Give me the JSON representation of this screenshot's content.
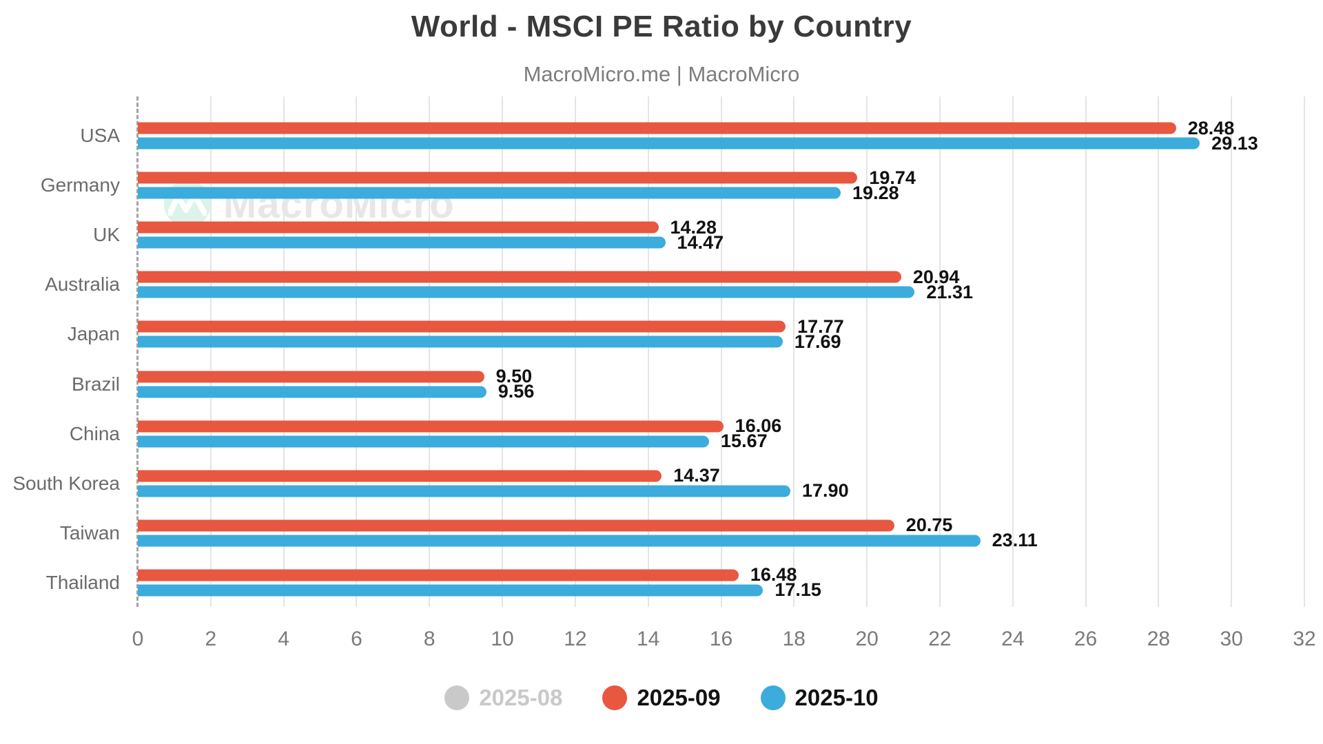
{
  "header": {
    "title": "World - MSCI PE Ratio by Country",
    "subtitle": "MacroMicro.me | MacroMicro"
  },
  "watermark": {
    "text": "MacroMicro",
    "circle_color": "#DCF3EA",
    "mark_color": "#FFFFFF"
  },
  "chart_data": {
    "type": "bar",
    "orientation": "horizontal",
    "title": "World - MSCI PE Ratio by Country",
    "subtitle": "MacroMicro.me | MacroMicro",
    "categories": [
      "USA",
      "Germany",
      "UK",
      "Australia",
      "Japan",
      "Brazil",
      "China",
      "South Korea",
      "Taiwan",
      "Thailand"
    ],
    "series": [
      {
        "name": "2025-08",
        "color": "#C9C9C9",
        "visible": false,
        "values": []
      },
      {
        "name": "2025-09",
        "color": "#E8573F",
        "visible": true,
        "values": [
          28.48,
          19.74,
          14.28,
          20.94,
          17.77,
          9.5,
          16.06,
          14.37,
          20.75,
          16.48
        ]
      },
      {
        "name": "2025-10",
        "color": "#3BACDB",
        "visible": true,
        "values": [
          29.13,
          19.28,
          14.47,
          21.31,
          17.69,
          9.56,
          15.67,
          17.9,
          23.11,
          17.15
        ]
      }
    ],
    "xlim": [
      0,
      32
    ],
    "xtick_step": 2,
    "grid": true,
    "value_label_decimals": 2,
    "legend_position": "bottom",
    "colors": {
      "gridline": "#E4E4E4",
      "axis_dashed": "#A3A3A3",
      "value_label": "#111111",
      "category_label": "#6B6B6B",
      "tick_label": "#7A7A7A"
    }
  }
}
